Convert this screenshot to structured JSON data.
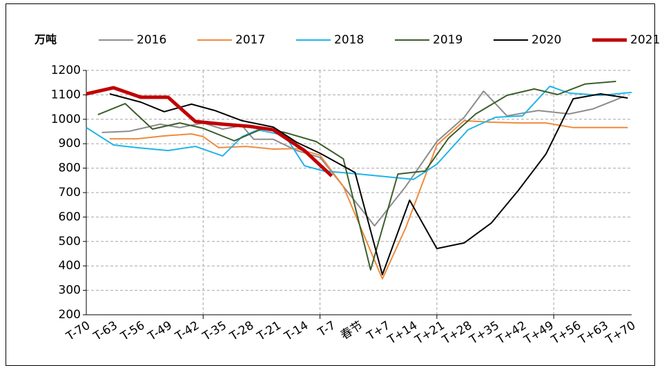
{
  "chart_data": {
    "type": "line",
    "ylabel": "万吨",
    "xlim": [
      -70,
      70
    ],
    "ylim": [
      200,
      1200
    ],
    "yticks": [
      200,
      300,
      400,
      500,
      600,
      700,
      800,
      900,
      1000,
      1100,
      1200
    ],
    "xticks": [
      {
        "value": -70,
        "label": "T-70"
      },
      {
        "value": -63,
        "label": "T-63"
      },
      {
        "value": -56,
        "label": "T-56"
      },
      {
        "value": -49,
        "label": "T-49"
      },
      {
        "value": -42,
        "label": "T-42"
      },
      {
        "value": -35,
        "label": "T-35"
      },
      {
        "value": -28,
        "label": "T-28"
      },
      {
        "value": -21,
        "label": "T-21"
      },
      {
        "value": -14,
        "label": "T-14"
      },
      {
        "value": -7,
        "label": "T-7"
      },
      {
        "value": 0,
        "label": "春节"
      },
      {
        "value": 7,
        "label": "T+7"
      },
      {
        "value": 14,
        "label": "T+14"
      },
      {
        "value": 21,
        "label": "T+21"
      },
      {
        "value": 28,
        "label": "T+28"
      },
      {
        "value": 35,
        "label": "T+35"
      },
      {
        "value": 42,
        "label": "T+42"
      },
      {
        "value": 49,
        "label": "T+49"
      },
      {
        "value": 56,
        "label": "T+56"
      },
      {
        "value": 63,
        "label": "T+63"
      },
      {
        "value": 70,
        "label": "T+70"
      }
    ],
    "xgrid": [
      -40,
      -10,
      20,
      50
    ],
    "grid": true,
    "legend": "top",
    "series": [
      {
        "name": "2016",
        "color": "#8c8c8c",
        "width": 2,
        "x": [
          -66,
          -59,
          -51,
          -46,
          -40,
          -35,
          -30,
          -27,
          -22,
          -16,
          -10,
          -4,
          4,
          12,
          20,
          27,
          32,
          38,
          46,
          54,
          60,
          68
        ],
        "values": [
          946,
          951,
          980,
          966,
          985,
          960,
          974,
          918,
          918,
          872,
          844,
          725,
          564,
          725,
          909,
          1008,
          1115,
          1014,
          1036,
          1022,
          1042,
          1093
        ]
      },
      {
        "name": "2017",
        "color": "#f08a3c",
        "width": 2,
        "x": [
          -64,
          -57,
          -50,
          -43,
          -40,
          -36,
          -29,
          -22,
          -16,
          -10,
          -4,
          6,
          12,
          20,
          27,
          34,
          41,
          48,
          55,
          62,
          69
        ],
        "values": [
          920,
          920,
          932,
          940,
          929,
          884,
          889,
          878,
          880,
          853,
          725,
          347,
          556,
          895,
          994,
          988,
          985,
          985,
          966,
          966,
          966
        ]
      },
      {
        "name": "2018",
        "color": "#1fb4e8",
        "width": 2,
        "x": [
          -70,
          -63,
          -57,
          -49,
          -42,
          -35,
          -30,
          -26,
          -19,
          -14,
          -9,
          0,
          7,
          14,
          20,
          28,
          35,
          42,
          49,
          54,
          62,
          70
        ],
        "values": [
          966,
          895,
          884,
          872,
          889,
          850,
          929,
          957,
          934,
          810,
          788,
          776,
          765,
          754,
          816,
          957,
          1008,
          1014,
          1135,
          1107,
          1098,
          1110
        ]
      },
      {
        "name": "2019",
        "color": "#3b5e2b",
        "width": 2,
        "x": [
          -67,
          -60,
          -53,
          -46,
          -40,
          -32,
          -25,
          -19,
          -11,
          -4,
          3,
          10,
          17,
          23,
          30,
          38,
          45,
          51,
          58,
          66
        ],
        "values": [
          1019,
          1064,
          960,
          985,
          963,
          912,
          960,
          946,
          909,
          838,
          384,
          776,
          788,
          923,
          1022,
          1098,
          1124,
          1101,
          1144,
          1155
        ]
      },
      {
        "name": "2020",
        "color": "#000000",
        "width": 2,
        "x": [
          -64,
          -56,
          -50,
          -43,
          -37,
          -30,
          -22,
          -16,
          -10,
          -1,
          6,
          13,
          20,
          27,
          34,
          41,
          48,
          55,
          62,
          69
        ],
        "values": [
          1104,
          1070,
          1031,
          1062,
          1036,
          994,
          968,
          906,
          861,
          782,
          364,
          669,
          471,
          494,
          576,
          711,
          858,
          1084,
          1104,
          1087
        ]
      },
      {
        "name": "2021",
        "color": "#c00000",
        "width": 5,
        "x": [
          -70,
          -63,
          -56,
          -49,
          -42,
          -35,
          -28,
          -22,
          -14,
          -7
        ],
        "values": [
          1104,
          1129,
          1090,
          1090,
          991,
          980,
          971,
          957,
          872,
          768
        ]
      }
    ]
  }
}
